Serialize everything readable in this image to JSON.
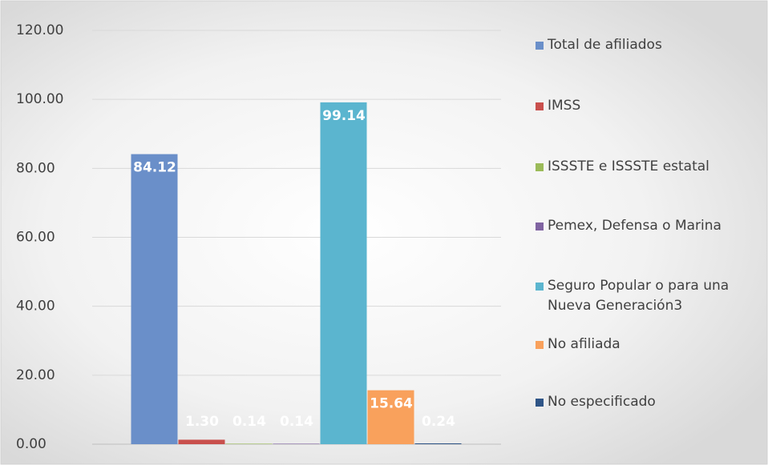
{
  "chart_data": {
    "type": "bar",
    "categories": [
      null
    ],
    "series": [
      {
        "name": "Total de afiliados",
        "color": "#6a8fc9",
        "values": [
          84.12
        ],
        "value_labels": [
          "84.12"
        ]
      },
      {
        "name": "IMSS",
        "color": "#c9504d",
        "values": [
          1.3
        ],
        "value_labels": [
          "1.30"
        ]
      },
      {
        "name": "ISSSTE e ISSSTE estatal",
        "color": "#9bbb59",
        "values": [
          0.14
        ],
        "value_labels": [
          "0.14"
        ]
      },
      {
        "name": "Pemex, Defensa o Marina",
        "color": "#8064a2",
        "values": [
          0.14
        ],
        "value_labels": [
          "0.14"
        ]
      },
      {
        "name": "Seguro Popular o para una Nueva Generación3",
        "color": "#5bb5cf",
        "values": [
          99.14
        ],
        "value_labels": [
          "99.14"
        ]
      },
      {
        "name": "No afiliada",
        "color": "#f9a15c",
        "values": [
          15.64
        ],
        "value_labels": [
          "15.64"
        ]
      },
      {
        "name": "No especificado",
        "color": "#2f5587",
        "values": [
          0.24
        ],
        "value_labels": [
          "0.24"
        ]
      }
    ],
    "ylim": [
      0,
      120
    ],
    "yticks": [
      {
        "value": 0,
        "label": "0.00"
      },
      {
        "value": 20,
        "label": "20.00"
      },
      {
        "value": 40,
        "label": "40.00"
      },
      {
        "value": 60,
        "label": "60.00"
      },
      {
        "value": 80,
        "label": "80.00"
      },
      {
        "value": 100,
        "label": "100.00"
      },
      {
        "value": 120,
        "label": "120.00"
      }
    ],
    "grid": true,
    "legend": "right"
  }
}
